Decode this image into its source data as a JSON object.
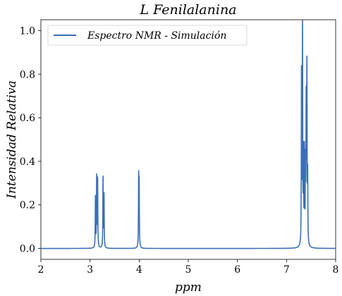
{
  "chart_data": {
    "type": "line",
    "title": "L Fenilalanina",
    "xlabel": "ppm",
    "ylabel": "Intensidad Relativa",
    "xlim": [
      2,
      8
    ],
    "ylim": [
      -0.05,
      1.05
    ],
    "xticks": [
      2,
      3,
      4,
      5,
      6,
      7,
      8
    ],
    "yticks": [
      0.0,
      0.2,
      0.4,
      0.6,
      0.8,
      1.0
    ],
    "xtick_labels": [
      "2",
      "3",
      "4",
      "5",
      "6",
      "7",
      "8"
    ],
    "ytick_labels": [
      "0.0",
      "0.2",
      "0.4",
      "0.6",
      "0.8",
      "1.0"
    ],
    "grid": false,
    "legend_position": "top-left",
    "series": [
      {
        "name": "Espectro NMR - Simulación",
        "color": "#3a6fb8",
        "peaks": [
          {
            "ppm": 3.11,
            "height": 0.23
          },
          {
            "ppm": 3.135,
            "height": 0.32
          },
          {
            "ppm": 3.155,
            "height": 0.31
          },
          {
            "ppm": 3.265,
            "height": 0.32
          },
          {
            "ppm": 3.285,
            "height": 0.24
          },
          {
            "ppm": 3.99,
            "height": 0.31
          },
          {
            "ppm": 4.0,
            "height": 0.28
          },
          {
            "ppm": 7.305,
            "height": 0.78
          },
          {
            "ppm": 7.325,
            "height": 1.0
          },
          {
            "ppm": 7.345,
            "height": 0.4
          },
          {
            "ppm": 7.365,
            "height": 0.42
          },
          {
            "ppm": 7.385,
            "height": 0.35
          },
          {
            "ppm": 7.4,
            "height": 0.63
          },
          {
            "ppm": 7.415,
            "height": 0.79
          },
          {
            "ppm": 7.43,
            "height": 0.3
          }
        ]
      }
    ]
  }
}
